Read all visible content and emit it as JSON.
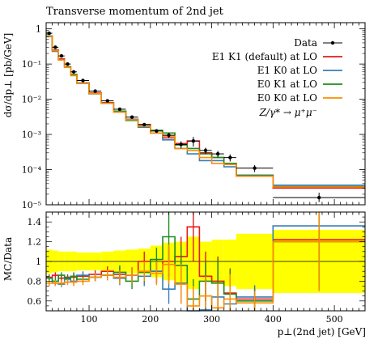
{
  "chart_data": [
    {
      "type": "line",
      "title": "Transverse momentum of 2nd jet",
      "ylabel": "dσ/dp⊥ [pb/GeV]",
      "yscale": "log",
      "ylim": [
        1e-05,
        1.5
      ],
      "xlim": [
        30,
        550
      ],
      "yticks": [
        {
          "value": 1,
          "label": "1"
        },
        {
          "value": 0.1,
          "label": "10⁻¹"
        },
        {
          "value": 0.01,
          "label": "10⁻²"
        },
        {
          "value": 0.001,
          "label": "10⁻³"
        },
        {
          "value": 0.0001,
          "label": "10⁻⁴"
        },
        {
          "value": 1e-05,
          "label": "10⁻⁵"
        }
      ],
      "bin_edges": [
        30,
        40,
        50,
        60,
        70,
        80,
        100,
        120,
        140,
        160,
        180,
        200,
        220,
        240,
        260,
        280,
        300,
        320,
        340,
        400,
        550
      ],
      "legend_position": "top-right",
      "legend_note": "Z/γ* → μ⁺μ⁻",
      "data": {
        "name": "Data",
        "x": [
          35,
          45,
          55,
          65,
          75,
          90,
          110,
          130,
          150,
          170,
          190,
          210,
          230,
          250,
          270,
          290,
          310,
          330,
          370,
          475
        ],
        "y": [
          0.75,
          0.3,
          0.17,
          0.1,
          0.06,
          0.034,
          0.017,
          0.009,
          0.0052,
          0.0031,
          0.0019,
          0.00125,
          0.00095,
          0.00052,
          0.00065,
          0.00035,
          0.00028,
          0.00022,
          0.00011,
          1.6e-05
        ],
        "err_low": [
          0.7,
          0.28,
          0.158,
          0.093,
          0.056,
          0.032,
          0.016,
          0.0084,
          0.0048,
          0.0029,
          0.0017,
          0.0011,
          0.0008,
          0.0004,
          0.00045,
          0.00028,
          0.00022,
          0.00017,
          8.5e-05,
          1.2e-05
        ],
        "err_high": [
          0.8,
          0.32,
          0.182,
          0.107,
          0.064,
          0.036,
          0.018,
          0.0096,
          0.0056,
          0.0033,
          0.0021,
          0.0014,
          0.0011,
          0.00064,
          0.00085,
          0.00042,
          0.00034,
          0.00027,
          0.000135,
          2.2e-05
        ]
      },
      "series": [
        {
          "name": "E1 K1 (default) at LO",
          "color": "#e41a1c",
          "values": [
            0.62,
            0.25,
            0.14,
            0.083,
            0.05,
            0.029,
            0.015,
            0.008,
            0.0045,
            0.0027,
            0.0019,
            0.0011,
            0.0008,
            0.00055,
            0.00065,
            0.0003,
            0.00022,
            0.00015,
            7e-05,
            3e-05
          ]
        },
        {
          "name": "E1 K0 at LO",
          "color": "#377eb8",
          "values": [
            0.62,
            0.23,
            0.13,
            0.082,
            0.048,
            0.029,
            0.0143,
            0.0077,
            0.0043,
            0.0027,
            0.0016,
            0.0011,
            0.0007,
            0.0004,
            0.00028,
            0.00018,
            0.00018,
            0.00012,
            7e-05,
            3.6e-05
          ]
        },
        {
          "name": "E0 K1 at LO",
          "color": "#1e8c1e",
          "values": [
            0.62,
            0.24,
            0.13,
            0.083,
            0.05,
            0.028,
            0.0143,
            0.0077,
            0.0046,
            0.0025,
            0.0017,
            0.0013,
            0.0011,
            0.0005,
            0.0004,
            0.00028,
            0.00022,
            0.00015,
            6.8e-05,
            3.3e-05
          ]
        },
        {
          "name": "E0 K0 at LO",
          "color": "#ff8c00",
          "values": [
            0.6,
            0.24,
            0.13,
            0.08,
            0.047,
            0.028,
            0.0145,
            0.0077,
            0.0043,
            0.0026,
            0.0017,
            0.0011,
            0.0009,
            0.0004,
            0.00035,
            0.00022,
            0.00015,
            0.00014,
            6.5e-05,
            3.2e-05
          ]
        }
      ]
    },
    {
      "type": "line",
      "ylabel": "MC/Data",
      "xlabel": "p⊥(2nd jet) [GeV]",
      "xlim": [
        30,
        550
      ],
      "ylim": [
        0.5,
        1.5
      ],
      "yticks": [
        {
          "value": 0.6,
          "label": "0.6"
        },
        {
          "value": 0.8,
          "label": "0.8"
        },
        {
          "value": 1.0,
          "label": "1"
        },
        {
          "value": 1.2,
          "label": "1.2"
        },
        {
          "value": 1.4,
          "label": "1.4"
        }
      ],
      "xticks": [
        {
          "value": 100,
          "label": "100"
        },
        {
          "value": 200,
          "label": "200"
        },
        {
          "value": 300,
          "label": "300"
        },
        {
          "value": 400,
          "label": "400"
        },
        {
          "value": 500,
          "label": "500"
        }
      ],
      "bin_edges": [
        30,
        40,
        50,
        60,
        70,
        80,
        100,
        120,
        140,
        160,
        180,
        200,
        220,
        240,
        260,
        280,
        300,
        320,
        340,
        400,
        550
      ],
      "data_band": {
        "color": "#ffff00",
        "low": [
          0.88,
          0.89,
          0.9,
          0.9,
          0.9,
          0.91,
          0.91,
          0.9,
          0.89,
          0.88,
          0.87,
          0.84,
          0.81,
          0.77,
          0.72,
          0.8,
          0.78,
          0.75,
          0.72,
          0.68
        ],
        "high": [
          1.12,
          1.11,
          1.1,
          1.1,
          1.1,
          1.09,
          1.09,
          1.1,
          1.11,
          1.12,
          1.13,
          1.16,
          1.19,
          1.2,
          1.25,
          1.2,
          1.22,
          1.22,
          1.28,
          1.32
        ]
      },
      "series": [
        {
          "name": "E1 K1 (default) at LO",
          "color": "#e41a1c",
          "values": [
            0.84,
            0.86,
            0.83,
            0.84,
            0.84,
            0.85,
            0.87,
            0.9,
            0.87,
            0.86,
            1.0,
            0.9,
            1.0,
            1.05,
            1.35,
            0.85,
            0.8,
            0.68,
            0.62,
            1.22
          ],
          "err": [
            0.03,
            0.03,
            0.03,
            0.03,
            0.04,
            0.04,
            0.04,
            0.05,
            0.07,
            0.08,
            0.1,
            0.12,
            0.15,
            0.2,
            0.35,
            0.25,
            0.25,
            0.25,
            0.12,
            0.5
          ]
        },
        {
          "name": "E1 K0 at LO",
          "color": "#377eb8",
          "values": [
            0.83,
            0.78,
            0.77,
            0.82,
            0.8,
            0.86,
            0.84,
            0.86,
            0.83,
            0.86,
            0.85,
            0.9,
            0.72,
            0.78,
            0.44,
            0.51,
            0.64,
            0.57,
            0.64,
            1.36
          ],
          "err": [
            0.03,
            0.03,
            0.03,
            0.03,
            0.04,
            0.04,
            0.04,
            0.05,
            0.07,
            0.08,
            0.1,
            0.12,
            0.15,
            0.2,
            0.2,
            0.2,
            0.25,
            0.25,
            0.12,
            0.55
          ]
        },
        {
          "name": "E0 K1 at LO",
          "color": "#1e8c1e",
          "values": [
            0.83,
            0.8,
            0.86,
            0.83,
            0.85,
            0.82,
            0.84,
            0.86,
            0.89,
            0.8,
            0.89,
            1.02,
            1.25,
            0.96,
            0.62,
            0.8,
            0.78,
            0.67,
            0.6,
            1.2
          ],
          "err": [
            0.03,
            0.03,
            0.03,
            0.03,
            0.04,
            0.04,
            0.04,
            0.05,
            0.07,
            0.08,
            0.1,
            0.12,
            0.25,
            0.2,
            0.2,
            0.2,
            0.25,
            0.25,
            0.12,
            0.5
          ]
        },
        {
          "name": "E0 K0 at LO",
          "color": "#ff8c00",
          "values": [
            0.78,
            0.78,
            0.78,
            0.79,
            0.79,
            0.8,
            0.84,
            0.86,
            0.84,
            0.86,
            0.9,
            0.88,
            0.97,
            0.77,
            0.55,
            0.65,
            0.53,
            0.62,
            0.58,
            1.2
          ],
          "err": [
            0.03,
            0.03,
            0.03,
            0.03,
            0.04,
            0.04,
            0.04,
            0.05,
            0.07,
            0.08,
            0.1,
            0.12,
            0.2,
            0.2,
            0.2,
            0.2,
            0.25,
            0.25,
            0.12,
            0.5
          ]
        }
      ]
    }
  ]
}
